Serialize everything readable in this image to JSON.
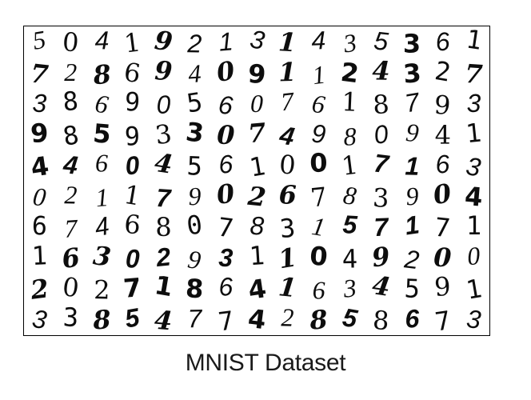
{
  "figure": {
    "caption": "MNIST Dataset",
    "rows": [
      [
        "5",
        "0",
        "4",
        "1",
        "9",
        "2",
        "1",
        "3",
        "1",
        "4",
        "3",
        "5",
        "3",
        "6",
        "1"
      ],
      [
        "7",
        "2",
        "8",
        "6",
        "9",
        "4",
        "0",
        "9",
        "1",
        "1",
        "2",
        "4",
        "3",
        "2",
        "7"
      ],
      [
        "3",
        "8",
        "6",
        "9",
        "0",
        "5",
        "6",
        "0",
        "7",
        "6",
        "1",
        "8",
        "7",
        "9",
        "3"
      ],
      [
        "9",
        "8",
        "5",
        "9",
        "3",
        "3",
        "0",
        "7",
        "4",
        "9",
        "8",
        "0",
        "9",
        "4",
        "1"
      ],
      [
        "4",
        "4",
        "6",
        "0",
        "4",
        "5",
        "6",
        "1",
        "0",
        "0",
        "1",
        "7",
        "1",
        "6",
        "3"
      ],
      [
        "0",
        "2",
        "1",
        "1",
        "7",
        "9",
        "0",
        "2",
        "6",
        "7",
        "8",
        "3",
        "9",
        "0",
        "4"
      ],
      [
        "6",
        "7",
        "4",
        "6",
        "8",
        "0",
        "7",
        "8",
        "3",
        "1",
        "5",
        "7",
        "1",
        "7",
        "1"
      ],
      [
        "1",
        "6",
        "3",
        "0",
        "2",
        "9",
        "3",
        "1",
        "1",
        "0",
        "4",
        "9",
        "2",
        "0",
        "0"
      ],
      [
        "2",
        "0",
        "2",
        "7",
        "1",
        "8",
        "6",
        "4",
        "1",
        "6",
        "3",
        "4",
        "5",
        "9",
        "1"
      ],
      [
        "3",
        "3",
        "8",
        "5",
        "4",
        "7",
        "7",
        "4",
        "2",
        "8",
        "5",
        "8",
        "6",
        "7",
        "3"
      ]
    ]
  }
}
